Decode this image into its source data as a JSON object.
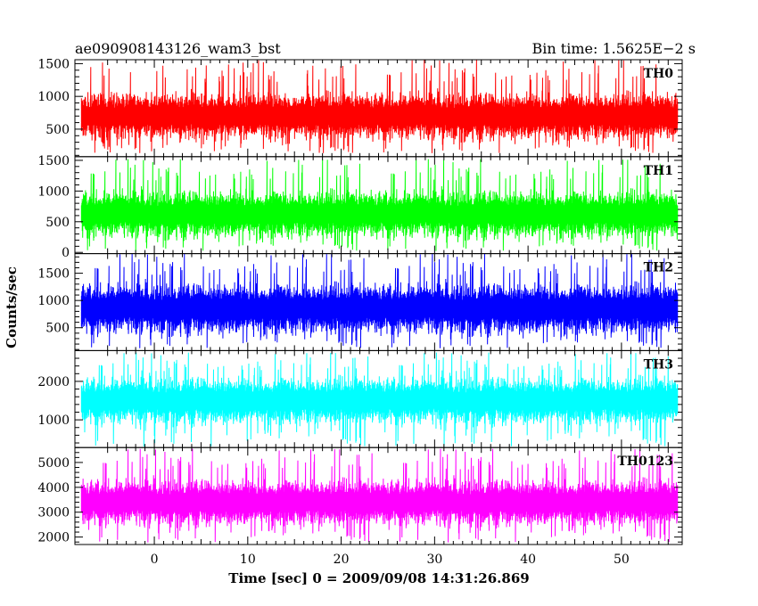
{
  "header": {
    "title_left": "ae090908143126_wam3_bst",
    "title_right": "Bin time: 1.5625E−2 s"
  },
  "axes": {
    "xlabel": "Time [sec] 0 = 2009/09/08 14:31:26.869",
    "ylabel": "Counts/sec"
  },
  "chart_data": {
    "type": "line",
    "bin_time_s": 0.015625,
    "xlim": [
      -8.5,
      56.5
    ],
    "x_ticks": [
      0,
      10,
      20,
      30,
      40,
      50
    ],
    "x_data_range": [
      -7.8,
      56.0
    ],
    "grid": false,
    "panels": [
      {
        "name": "TH0",
        "color": "#ff0000",
        "ylim": [
          80,
          1560
        ],
        "y_ticks": [
          500,
          1000,
          1500
        ],
        "typical_range": [
          350,
          1050
        ],
        "extreme_range": [
          130,
          1560
        ]
      },
      {
        "name": "TH1",
        "color": "#00ff00",
        "ylim": [
          -20,
          1560
        ],
        "y_ticks": [
          0,
          500,
          1000,
          1500
        ],
        "typical_range": [
          250,
          1000
        ],
        "extreme_range": [
          20,
          1520
        ]
      },
      {
        "name": "TH2",
        "color": "#0000ff",
        "ylim": [
          80,
          1860
        ],
        "y_ticks": [
          500,
          1000,
          1500
        ],
        "typical_range": [
          400,
          1300
        ],
        "extreme_range": [
          120,
          1860
        ]
      },
      {
        "name": "TH3",
        "color": "#00ffff",
        "ylim": [
          280,
          2800
        ],
        "y_ticks": [
          1000,
          2000
        ],
        "typical_range": [
          900,
          2100
        ],
        "extreme_range": [
          300,
          2750
        ]
      },
      {
        "name": "TH0123",
        "color": "#ff00ff",
        "ylim": [
          1700,
          5600
        ],
        "y_ticks": [
          2000,
          3000,
          4000,
          5000
        ],
        "typical_range": [
          2500,
          4300
        ],
        "extreme_range": [
          1780,
          5550
        ]
      }
    ]
  }
}
